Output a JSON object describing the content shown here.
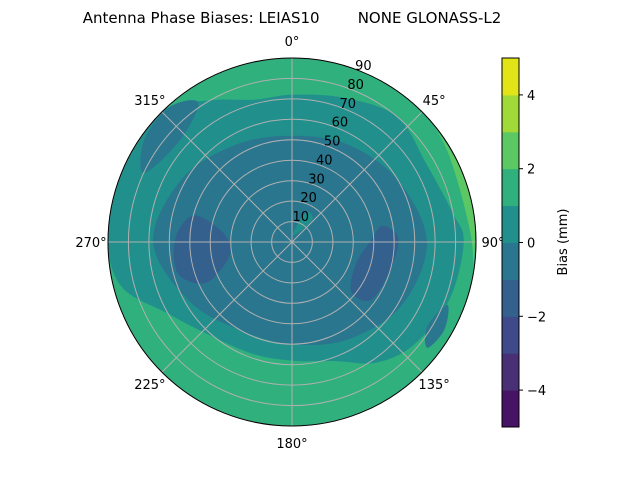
{
  "chart_data": {
    "type": "heatmap",
    "projection": "polar",
    "title": "Antenna Phase Biases: LEIAS10        NONE GLONASS-L2",
    "theta_direction": "clockwise",
    "theta_zero": "top",
    "theta_ticks": [
      "0°",
      "45°",
      "90°",
      "135°",
      "180°",
      "225°",
      "270°",
      "315°"
    ],
    "r_ticks": [
      "10",
      "20",
      "30",
      "40",
      "50",
      "60",
      "70",
      "80",
      "90"
    ],
    "r_range": [
      0,
      90
    ],
    "grid": true,
    "colorbar": {
      "label": "Bias (mm)",
      "range": [
        -5,
        5
      ],
      "ticks": [
        "−4",
        "−2",
        "0",
        "2",
        "4"
      ],
      "levels": [
        -5,
        -4,
        -3,
        -2,
        -1,
        0,
        1,
        2,
        3,
        4,
        5
      ],
      "colors": [
        "#471365",
        "#482f76",
        "#3e4a89",
        "#33608d",
        "#2a768e",
        "#21908d",
        "#2fb07c",
        "#5cc863",
        "#a0da39",
        "#e3e418"
      ]
    },
    "background_level": 1.5,
    "regions": [
      {
        "level": 0.5,
        "points": [
          [
            0,
            72
          ],
          [
            20,
            75
          ],
          [
            40,
            80
          ],
          [
            60,
            76
          ],
          [
            80,
            80
          ],
          [
            90,
            84
          ],
          [
            110,
            82
          ],
          [
            130,
            78
          ],
          [
            145,
            72
          ],
          [
            160,
            62
          ],
          [
            180,
            58
          ],
          [
            200,
            58
          ],
          [
            225,
            62
          ],
          [
            240,
            70
          ],
          [
            255,
            86
          ],
          [
            270,
            90
          ],
          [
            290,
            90
          ],
          [
            315,
            90
          ],
          [
            330,
            80
          ],
          [
            345,
            72
          ]
        ]
      },
      {
        "level": 2.5,
        "points": [
          [
            50,
            90
          ],
          [
            60,
            88
          ],
          [
            75,
            86
          ],
          [
            90,
            88
          ],
          [
            100,
            90
          ],
          [
            75,
            91
          ]
        ]
      },
      {
        "level": -0.5,
        "points": [
          [
            0,
            52
          ],
          [
            30,
            55
          ],
          [
            60,
            60
          ],
          [
            90,
            66
          ],
          [
            120,
            62
          ],
          [
            150,
            55
          ],
          [
            180,
            50
          ],
          [
            210,
            50
          ],
          [
            240,
            58
          ],
          [
            270,
            68
          ],
          [
            300,
            62
          ],
          [
            330,
            55
          ]
        ]
      },
      {
        "level": -0.5,
        "points": [
          [
            295,
            80
          ],
          [
            305,
            88
          ],
          [
            318,
            89
          ],
          [
            326,
            82
          ],
          [
            312,
            74
          ]
        ]
      },
      {
        "level": -0.5,
        "points": [
          [
            112,
            82
          ],
          [
            120,
            86
          ],
          [
            128,
            84
          ],
          [
            122,
            78
          ]
        ]
      },
      {
        "level": -1.5,
        "points": [
          [
            285,
            50
          ],
          [
            280,
            36
          ],
          [
            265,
            30
          ],
          [
            250,
            36
          ],
          [
            245,
            48
          ],
          [
            255,
            58
          ],
          [
            272,
            57
          ]
        ]
      },
      {
        "level": -1.5,
        "points": [
          [
            80,
            45
          ],
          [
            90,
            38
          ],
          [
            110,
            33
          ],
          [
            130,
            38
          ],
          [
            126,
            48
          ],
          [
            105,
            50
          ],
          [
            88,
            52
          ]
        ]
      },
      {
        "level": 0.5,
        "points": [
          [
            5,
            4
          ],
          [
            25,
            16
          ],
          [
            42,
            15
          ],
          [
            35,
            6
          ]
        ]
      }
    ]
  }
}
